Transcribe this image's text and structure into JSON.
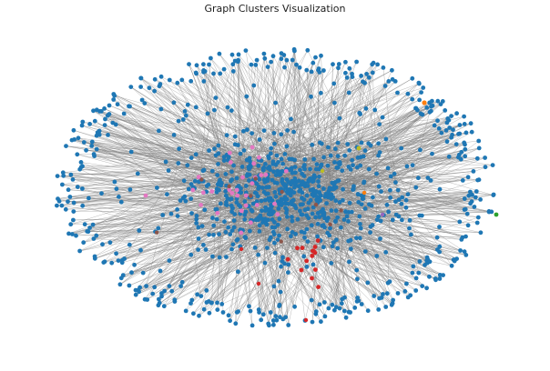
{
  "figure": {
    "title": "Graph Clusters Visualization"
  },
  "graph": {
    "layout": "spring",
    "edge_color": "#808080",
    "node_outline": "none",
    "clusters": [
      {
        "color": "#1f77b4",
        "role": "dominant"
      },
      {
        "color": "#e377c2",
        "role": "minor"
      },
      {
        "color": "#d62728",
        "role": "minor"
      },
      {
        "color": "#8c564b",
        "role": "minor"
      },
      {
        "color": "#bcbd22",
        "role": "minor"
      },
      {
        "color": "#ff7f0e",
        "role": "minor"
      },
      {
        "color": "#2ca02c",
        "role": "minor"
      },
      {
        "color": "#9467bd",
        "role": "minor"
      }
    ]
  }
}
